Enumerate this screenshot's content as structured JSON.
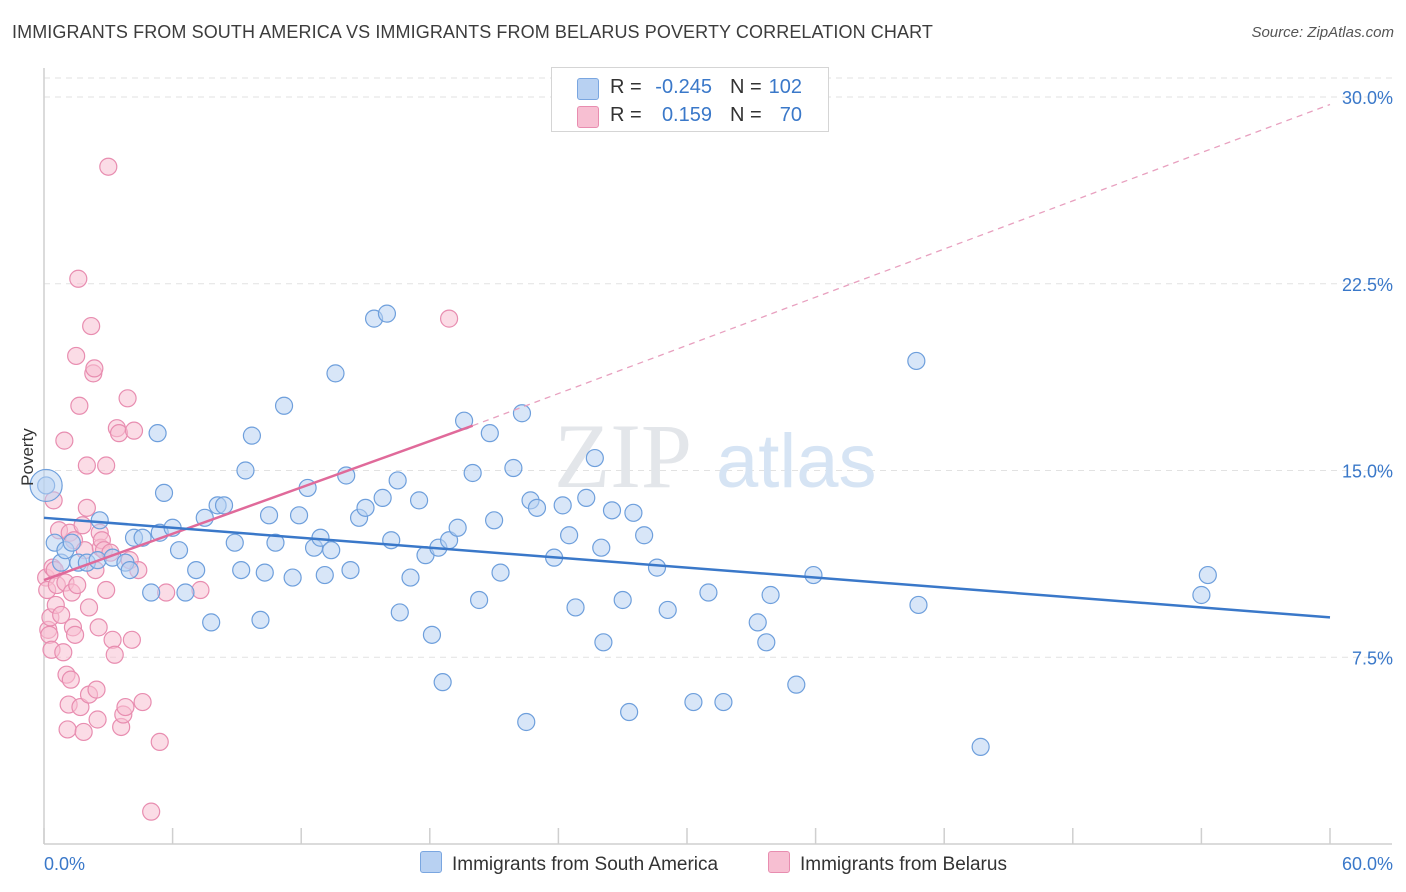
{
  "title": "IMMIGRANTS FROM SOUTH AMERICA VS IMMIGRANTS FROM BELARUS POVERTY CORRELATION CHART",
  "source": "Source: ZipAtlas.com",
  "watermark": {
    "zip": "ZIP",
    "atlas": "atlas"
  },
  "colors": {
    "blue": "#3a78c9",
    "blue_fill": "#b8d1f2",
    "pink": "#e06a9a",
    "pink_fill": "#f7bfd2",
    "axis_label": "#3a78c9"
  },
  "legend": {
    "blue": {
      "r_label": "R =",
      "r_value": "-0.245",
      "n_label": "N =",
      "n_value": "102"
    },
    "pink": {
      "r_label": "R =",
      "r_value": "0.159",
      "n_label": "N =",
      "n_value": "70"
    }
  },
  "bottom_legend": {
    "blue": "Immigrants from South America",
    "pink": "Immigrants from Belarus"
  },
  "chart_data": {
    "type": "scatter",
    "title": "IMMIGRANTS FROM SOUTH AMERICA VS IMMIGRANTS FROM BELARUS POVERTY CORRELATION CHART",
    "xlabel": "",
    "ylabel": "Poverty",
    "xlim": [
      0,
      60
    ],
    "ylim": [
      0,
      31.5
    ],
    "x_ticks": [
      "0.0%",
      "60.0%"
    ],
    "y_ticks": [
      {
        "value": 7.5,
        "label": "7.5%"
      },
      {
        "value": 15.0,
        "label": "15.0%"
      },
      {
        "value": 22.5,
        "label": "22.5%"
      },
      {
        "value": 30.0,
        "label": "30.0%"
      }
    ],
    "grid": true,
    "legend_position": "top-center",
    "series": [
      {
        "name": "Immigrants from South America",
        "color": "#3a78c9",
        "trend": {
          "x": [
            0,
            60
          ],
          "y": [
            13.1,
            9.1
          ]
        },
        "points": [
          [
            0.1,
            14.4
          ],
          [
            0.5,
            12.1
          ],
          [
            0.8,
            11.3
          ],
          [
            1.0,
            11.8
          ],
          [
            1.3,
            12.1
          ],
          [
            1.6,
            11.3
          ],
          [
            2.0,
            11.3
          ],
          [
            2.5,
            11.4
          ],
          [
            2.6,
            13.0
          ],
          [
            3.2,
            11.5
          ],
          [
            3.8,
            11.3
          ],
          [
            4.0,
            11.0
          ],
          [
            4.2,
            12.3
          ],
          [
            4.6,
            12.3
          ],
          [
            5.0,
            10.1
          ],
          [
            5.3,
            16.5
          ],
          [
            5.4,
            12.5
          ],
          [
            5.6,
            14.1
          ],
          [
            6.0,
            12.7
          ],
          [
            6.3,
            11.8
          ],
          [
            6.6,
            10.1
          ],
          [
            7.1,
            11.0
          ],
          [
            7.5,
            13.1
          ],
          [
            7.8,
            8.9
          ],
          [
            8.1,
            13.6
          ],
          [
            8.4,
            13.6
          ],
          [
            8.9,
            12.1
          ],
          [
            9.2,
            11.0
          ],
          [
            9.4,
            15.0
          ],
          [
            9.7,
            16.4
          ],
          [
            10.1,
            9.0
          ],
          [
            10.3,
            10.9
          ],
          [
            10.5,
            13.2
          ],
          [
            10.8,
            12.1
          ],
          [
            11.2,
            17.6
          ],
          [
            11.6,
            10.7
          ],
          [
            11.9,
            13.2
          ],
          [
            12.3,
            14.3
          ],
          [
            12.6,
            11.9
          ],
          [
            12.9,
            12.3
          ],
          [
            13.1,
            10.8
          ],
          [
            13.4,
            11.8
          ],
          [
            13.6,
            18.9
          ],
          [
            14.1,
            14.8
          ],
          [
            14.3,
            11.0
          ],
          [
            14.7,
            13.1
          ],
          [
            15.0,
            13.5
          ],
          [
            15.4,
            21.1
          ],
          [
            15.8,
            13.9
          ],
          [
            16.0,
            21.3
          ],
          [
            16.2,
            12.2
          ],
          [
            16.5,
            14.6
          ],
          [
            16.6,
            9.3
          ],
          [
            17.1,
            10.7
          ],
          [
            17.5,
            13.8
          ],
          [
            17.8,
            11.6
          ],
          [
            18.1,
            8.4
          ],
          [
            18.4,
            11.9
          ],
          [
            18.6,
            6.5
          ],
          [
            18.9,
            12.2
          ],
          [
            19.3,
            12.7
          ],
          [
            19.6,
            17.0
          ],
          [
            20.0,
            14.9
          ],
          [
            20.3,
            9.8
          ],
          [
            20.8,
            16.5
          ],
          [
            21.0,
            13.0
          ],
          [
            21.3,
            10.9
          ],
          [
            21.9,
            15.1
          ],
          [
            22.3,
            17.3
          ],
          [
            22.5,
            4.9
          ],
          [
            22.7,
            13.8
          ],
          [
            23.0,
            13.5
          ],
          [
            23.8,
            11.5
          ],
          [
            24.2,
            13.6
          ],
          [
            24.5,
            12.4
          ],
          [
            24.8,
            9.5
          ],
          [
            25.3,
            13.9
          ],
          [
            25.7,
            15.5
          ],
          [
            26.0,
            11.9
          ],
          [
            26.1,
            8.1
          ],
          [
            26.5,
            13.4
          ],
          [
            27.0,
            9.8
          ],
          [
            27.3,
            5.3
          ],
          [
            27.5,
            13.3
          ],
          [
            28.0,
            12.4
          ],
          [
            28.6,
            11.1
          ],
          [
            29.1,
            9.4
          ],
          [
            30.3,
            5.7
          ],
          [
            31.0,
            10.1
          ],
          [
            31.7,
            5.7
          ],
          [
            33.3,
            8.9
          ],
          [
            33.7,
            8.1
          ],
          [
            33.9,
            10.0
          ],
          [
            35.1,
            6.4
          ],
          [
            35.9,
            10.8
          ],
          [
            40.7,
            19.4
          ],
          [
            40.8,
            9.6
          ],
          [
            43.7,
            3.9
          ],
          [
            54.0,
            10.0
          ],
          [
            54.3,
            10.8
          ]
        ],
        "sizes": [
          36
        ]
      },
      {
        "name": "Immigrants from Belarus",
        "color": "#e06a9a",
        "trend": {
          "x": [
            0,
            20
          ],
          "y": [
            10.6,
            16.8
          ]
        },
        "trend_dashed": {
          "x": [
            20,
            60
          ],
          "y": [
            16.8,
            29.7
          ]
        },
        "points": [
          [
            0.1,
            10.7
          ],
          [
            0.15,
            10.2
          ],
          [
            0.2,
            8.6
          ],
          [
            0.25,
            8.4
          ],
          [
            0.3,
            9.1
          ],
          [
            0.35,
            7.8
          ],
          [
            0.4,
            11.1
          ],
          [
            0.45,
            13.8
          ],
          [
            0.5,
            11.0
          ],
          [
            0.55,
            9.6
          ],
          [
            0.6,
            10.4
          ],
          [
            0.7,
            12.6
          ],
          [
            0.8,
            9.2
          ],
          [
            0.9,
            7.7
          ],
          [
            0.95,
            16.2
          ],
          [
            1.0,
            10.5
          ],
          [
            1.05,
            6.8
          ],
          [
            1.1,
            4.6
          ],
          [
            1.15,
            5.6
          ],
          [
            1.2,
            12.5
          ],
          [
            1.25,
            6.6
          ],
          [
            1.3,
            10.1
          ],
          [
            1.35,
            8.7
          ],
          [
            1.4,
            12.2
          ],
          [
            1.45,
            8.4
          ],
          [
            1.5,
            19.6
          ],
          [
            1.55,
            10.4
          ],
          [
            1.6,
            22.7
          ],
          [
            1.65,
            17.6
          ],
          [
            1.7,
            5.5
          ],
          [
            1.8,
            12.8
          ],
          [
            1.85,
            4.5
          ],
          [
            1.9,
            11.8
          ],
          [
            2.0,
            13.5
          ],
          [
            2.0,
            15.2
          ],
          [
            2.1,
            9.5
          ],
          [
            2.1,
            6.0
          ],
          [
            2.2,
            20.8
          ],
          [
            2.3,
            18.9
          ],
          [
            2.35,
            19.1
          ],
          [
            2.4,
            11.0
          ],
          [
            2.45,
            6.2
          ],
          [
            2.5,
            5.0
          ],
          [
            2.55,
            8.7
          ],
          [
            2.6,
            12.5
          ],
          [
            2.65,
            11.9
          ],
          [
            2.7,
            12.2
          ],
          [
            2.8,
            11.8
          ],
          [
            2.9,
            10.2
          ],
          [
            2.9,
            15.2
          ],
          [
            3.0,
            27.2
          ],
          [
            3.1,
            11.7
          ],
          [
            3.2,
            8.2
          ],
          [
            3.3,
            7.6
          ],
          [
            3.4,
            16.7
          ],
          [
            3.5,
            16.5
          ],
          [
            3.6,
            4.7
          ],
          [
            3.7,
            5.2
          ],
          [
            3.8,
            5.5
          ],
          [
            3.9,
            17.9
          ],
          [
            4.0,
            11.4
          ],
          [
            4.1,
            8.2
          ],
          [
            4.2,
            16.6
          ],
          [
            4.4,
            11.0
          ],
          [
            4.6,
            5.7
          ],
          [
            5.0,
            1.3
          ],
          [
            5.4,
            4.1
          ],
          [
            5.7,
            10.1
          ],
          [
            7.3,
            10.2
          ],
          [
            18.9,
            21.1
          ]
        ],
        "sizes": [
          36
        ]
      }
    ]
  }
}
